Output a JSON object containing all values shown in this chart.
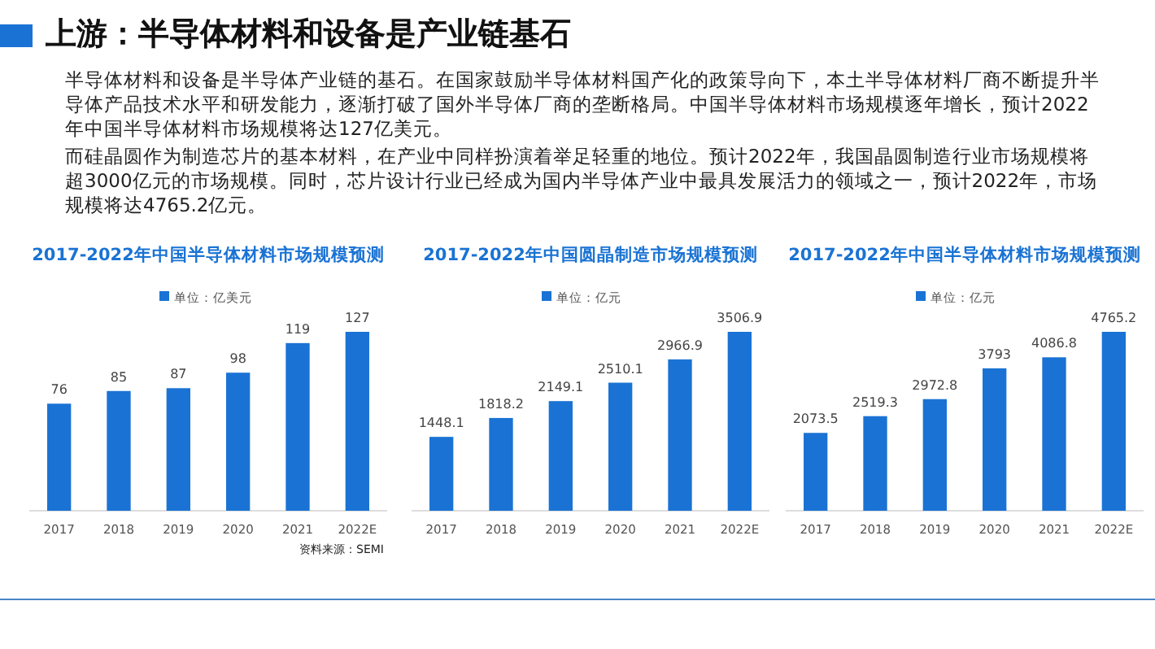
{
  "chart_data": [
    {
      "type": "other",
      "title": "上游：半导体材料和设备是产业链基石",
      "annotations": [
        "半导体材料和设备是半导体产业链的基石。在国家鼓励半导体材料国产化的政策导向下，本土半导体材料厂商不断提升半导体产品技术水平和研发能力，逐渐打破了国外半导体厂商的垄断格局。中国半导体材料市场规模逐年增长，预计2022年中国半导体材料市场规模将达127亿美元。",
        "而硅晶圆作为制造芯片的基本材料，在产业中同样扮演着举足轻重的地位。预计2022年，我国晶圆制造行业市场规模将超3000亿元的市场规模。同时，芯片设计行业已经成为国内半导体产业中最具发展活力的领域之一，预计2022年，市场规模将达4765.2亿元。"
      ]
    },
    {
      "type": "bar",
      "title": "2017-2022年中国半导体材料市场规模预测",
      "categories": [
        "2017",
        "2018",
        "2019",
        "2020",
        "2021",
        "2022E"
      ],
      "series": [
        {
          "name": "单位：亿美元",
          "color": "#1a73d4",
          "values": [
            76,
            85,
            87,
            98,
            119,
            127
          ]
        }
      ],
      "relative": false,
      "data_labels": true,
      "legend": "top",
      "annotations": [
        "资料来源：SEMI"
      ]
    },
    {
      "type": "bar",
      "title": "2017-2022年中国圆晶制造市场规模预测",
      "categories": [
        "2017",
        "2018",
        "2019",
        "2020",
        "2021",
        "2022E"
      ],
      "series": [
        {
          "name": "单位：亿元",
          "color": "#1a73d4",
          "values": [
            1448.1,
            1818.2,
            2149.1,
            2510.1,
            2966.9,
            3506.9
          ]
        }
      ],
      "data_labels": true,
      "legend": "top"
    },
    {
      "type": "bar",
      "title": "2017-2022年中国半导体材料市场规模预测",
      "categories": [
        "2017",
        "2018",
        "2019",
        "2020",
        "2021",
        "2022E"
      ],
      "series": [
        {
          "name": "单位：亿元",
          "color": "#1a73d4",
          "values": [
            2073.5,
            2519.3,
            2972.8,
            3793,
            4086.8,
            4765.2
          ]
        }
      ],
      "data_labels": true,
      "legend": "top"
    }
  ]
}
